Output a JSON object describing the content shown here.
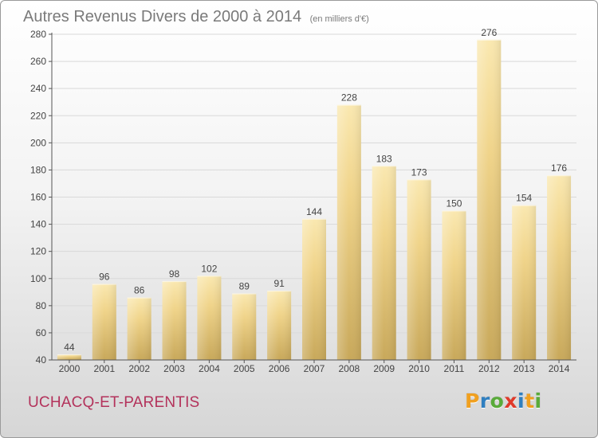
{
  "header": {
    "title": "Autres Revenus Divers de 2000 à 2014",
    "subtitle": "(en milliers d'€)"
  },
  "footer": {
    "commune": "UCHACQ-ET-PARENTIS",
    "logo_text": "Proxiti",
    "logo_colors": [
      "#f0a020",
      "#2f7fc0",
      "#5aab3a",
      "#e03a2a",
      "#2f7fc0",
      "#f0a020",
      "#5aab3a"
    ]
  },
  "chart_data": {
    "type": "bar",
    "categories": [
      "2000",
      "2001",
      "2002",
      "2003",
      "2004",
      "2005",
      "2006",
      "2007",
      "2008",
      "2009",
      "2010",
      "2011",
      "2012",
      "2013",
      "2014"
    ],
    "values": [
      44,
      96,
      86,
      98,
      102,
      89,
      91,
      144,
      228,
      183,
      173,
      150,
      276,
      154,
      176
    ],
    "ylim": [
      40,
      280
    ],
    "yticks": [
      40,
      60,
      80,
      100,
      120,
      140,
      160,
      180,
      200,
      220,
      240,
      260,
      280
    ],
    "grid": true,
    "colors": {
      "bar_light": "#f8e3a6",
      "bar_dark": "#c8a85a",
      "grid": "#d9d9d9",
      "axis": "#555555",
      "label": "#444444"
    }
  }
}
